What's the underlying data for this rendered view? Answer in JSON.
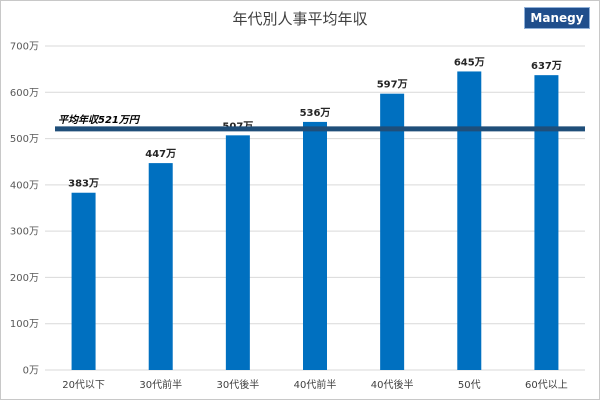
{
  "brand": {
    "name": "Manegy",
    "color": "#1f4e8c"
  },
  "chart_data": {
    "type": "bar",
    "title": "年代別人事平均年収",
    "categories": [
      "20代以下",
      "30代前半",
      "30代後半",
      "40代前半",
      "40代後半",
      "50代",
      "60代以上"
    ],
    "values": [
      383,
      447,
      507,
      536,
      597,
      645,
      637
    ],
    "value_labels": [
      "383万",
      "447万",
      "507万",
      "536万",
      "597万",
      "645万",
      "637万"
    ],
    "ylim": [
      0,
      700
    ],
    "y_ticks": [
      {
        "value": 0,
        "label": "0万"
      },
      {
        "value": 100,
        "label": "100万"
      },
      {
        "value": 200,
        "label": "200万"
      },
      {
        "value": 300,
        "label": "300万"
      },
      {
        "value": 400,
        "label": "400万"
      },
      {
        "value": 500,
        "label": "500万"
      },
      {
        "value": 600,
        "label": "600万"
      },
      {
        "value": 700,
        "label": "700万"
      }
    ],
    "grid": true,
    "bar_color": "#0070c0",
    "average": {
      "value": 521,
      "label": "平均年収521万円",
      "color": "#1f4e79"
    }
  }
}
